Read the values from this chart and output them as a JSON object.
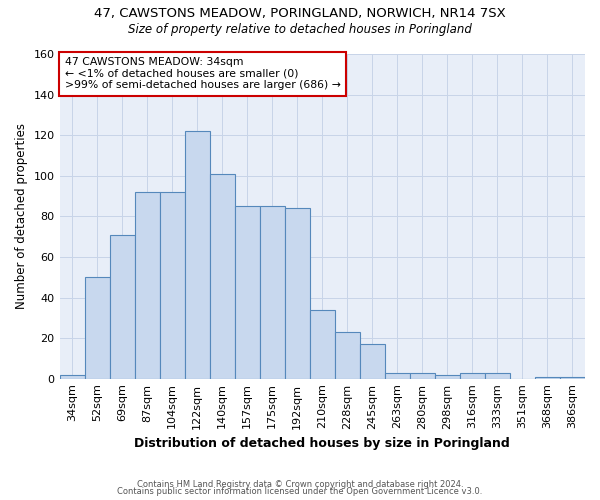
{
  "title_line1": "47, CAWSTONS MEADOW, PORINGLAND, NORWICH, NR14 7SX",
  "title_line2": "Size of property relative to detached houses in Poringland",
  "xlabel": "Distribution of detached houses by size in Poringland",
  "ylabel": "Number of detached properties",
  "categories": [
    "34sqm",
    "52sqm",
    "69sqm",
    "87sqm",
    "104sqm",
    "122sqm",
    "140sqm",
    "157sqm",
    "175sqm",
    "192sqm",
    "210sqm",
    "228sqm",
    "245sqm",
    "263sqm",
    "280sqm",
    "298sqm",
    "316sqm",
    "333sqm",
    "351sqm",
    "368sqm",
    "386sqm"
  ],
  "values": [
    2,
    50,
    71,
    92,
    92,
    122,
    101,
    85,
    85,
    84,
    34,
    23,
    17,
    3,
    3,
    2,
    3,
    3,
    0,
    1,
    1
  ],
  "bar_face_color": "#c8d8ee",
  "bar_edge_color": "#5588bb",
  "annotation_text": "47 CAWSTONS MEADOW: 34sqm\n← <1% of detached houses are smaller (0)\n>99% of semi-detached houses are larger (686) →",
  "annotation_box_color": "#ffffff",
  "annotation_box_edge": "#cc0000",
  "ylim": [
    0,
    160
  ],
  "yticks": [
    0,
    20,
    40,
    60,
    80,
    100,
    120,
    140,
    160
  ],
  "grid_color": "#c8d4e8",
  "background_color": "#e8eef8",
  "footer_line1": "Contains HM Land Registry data © Crown copyright and database right 2024.",
  "footer_line2": "Contains public sector information licensed under the Open Government Licence v3.0."
}
